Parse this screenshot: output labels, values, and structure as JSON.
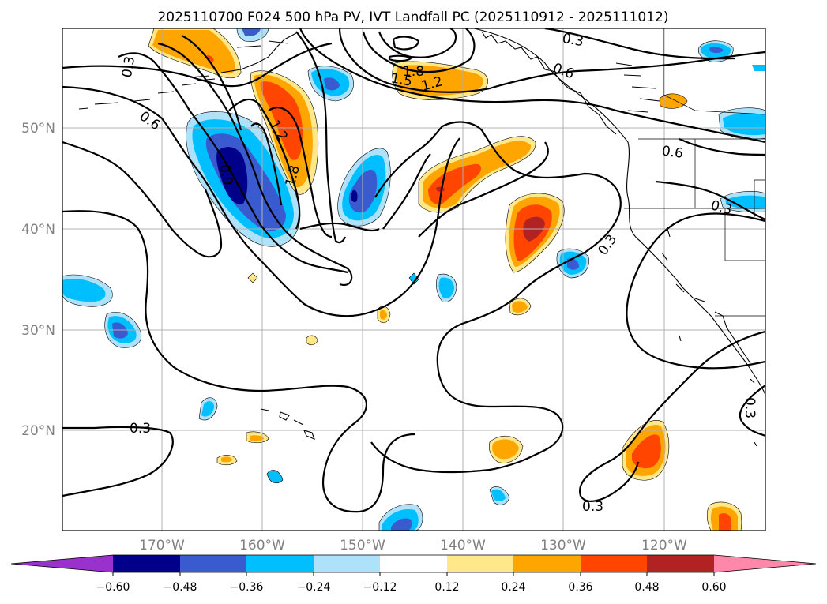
{
  "title": "2025110700 F024 500 hPa PV, IVT Landfall PC (2025110912 - 2025111012)",
  "latitude_labels": [
    "50°N",
    "40°N",
    "30°N",
    "20°N"
  ],
  "longitude_labels": [
    "170°W",
    "160°W",
    "150°W",
    "140°W",
    "130°W",
    "120°W"
  ],
  "contour_labels": {
    "nw_03": "0.3",
    "nw_06": "0.6",
    "trough_12": "1.2",
    "trough_18": "1.8",
    "trough_09": "0.9",
    "low_18": "1.8",
    "low_15": "1.5",
    "low_12": "1.2",
    "ne_03": "0.3",
    "ne_06": "0.6",
    "coast_06": "0.6",
    "coast_03": "0.3",
    "mid_03": "0.3",
    "west_03": "0.3",
    "south_03": "0.3",
    "se_03": "0.3"
  },
  "colorbar": {
    "ticks": [
      "−0.60",
      "−0.48",
      "−0.36",
      "−0.24",
      "−0.12",
      "0.12",
      "0.24",
      "0.36",
      "0.48",
      "0.60"
    ],
    "colors": {
      "under": "#9932cc",
      "n060": "#00008b",
      "n048": "#3a5bcf",
      "n036": "#00bfff",
      "n024": "#aee2fb",
      "zero": "#ffffff",
      "p012": "#ffe88a",
      "p024": "#ffa500",
      "p036": "#ff4500",
      "p048": "#b22222",
      "over": "#ff88aa"
    }
  }
}
